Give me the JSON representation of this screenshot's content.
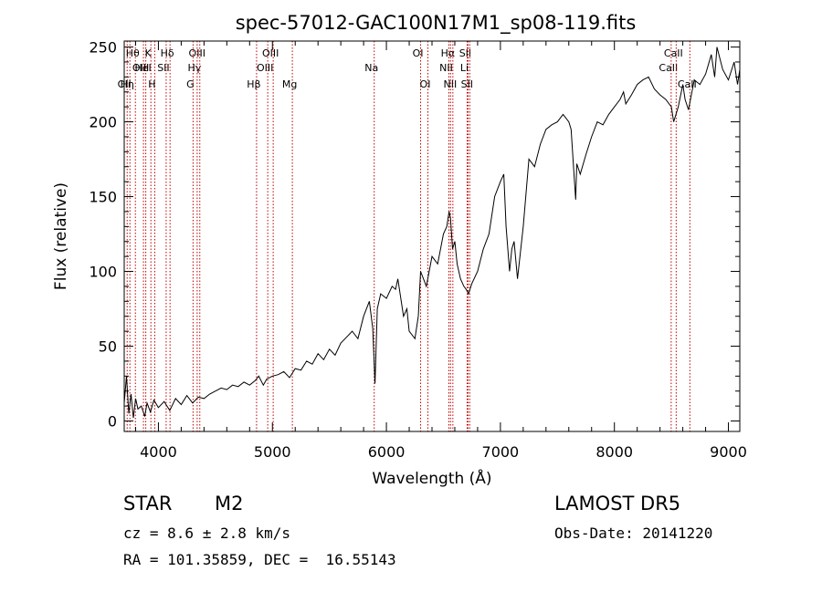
{
  "chart_data": {
    "type": "line",
    "title": "spec-57012-GAC100N17M1_sp08-119.fits",
    "xlabel": "Wavelength (Å)",
    "ylabel": "Flux (relative)",
    "xlim": [
      3700,
      9100
    ],
    "ylim": [
      -7,
      254
    ],
    "xticks": [
      4000,
      5000,
      6000,
      7000,
      8000,
      9000
    ],
    "yticks": [
      0,
      50,
      100,
      150,
      200,
      250
    ],
    "line_color": "#000000",
    "marker_color": "#c00000",
    "series": [
      {
        "x": [
          3700,
          3720,
          3740,
          3760,
          3780,
          3800,
          3820,
          3850,
          3880,
          3900,
          3930,
          3960,
          4000,
          4050,
          4100,
          4150,
          4200,
          4250,
          4300,
          4350,
          4400,
          4450,
          4500,
          4550,
          4600,
          4650,
          4700,
          4750,
          4800,
          4850,
          4880,
          4920,
          4950,
          5000,
          5050,
          5100,
          5150,
          5200,
          5250,
          5300,
          5350,
          5400,
          5450,
          5500,
          5550,
          5600,
          5650,
          5700,
          5750,
          5800,
          5850,
          5880,
          5900,
          5920,
          5950,
          6000,
          6050,
          6080,
          6100,
          6150,
          6180,
          6200,
          6250,
          6280,
          6300,
          6350,
          6400,
          6450,
          6500,
          6530,
          6550,
          6563,
          6580,
          6600,
          6620,
          6650,
          6680,
          6700,
          6720,
          6750,
          6800,
          6850,
          6900,
          6950,
          7000,
          7030,
          7050,
          7080,
          7100,
          7120,
          7150,
          7200,
          7250,
          7300,
          7350,
          7400,
          7450,
          7500,
          7550,
          7600,
          7620,
          7650,
          7660,
          7670,
          7700,
          7750,
          7800,
          7850,
          7900,
          7950,
          8000,
          8050,
          8080,
          8100,
          8150,
          8200,
          8250,
          8300,
          8350,
          8400,
          8450,
          8500,
          8520,
          8540,
          8560,
          8600,
          8620,
          8650,
          8680,
          8700,
          8750,
          8800,
          8850,
          8880,
          8900,
          8950,
          9000,
          9050,
          9080,
          9100
        ],
        "y": [
          12,
          30,
          5,
          18,
          2,
          15,
          8,
          10,
          3,
          12,
          6,
          14,
          9,
          13,
          7,
          15,
          11,
          17,
          12,
          16,
          15,
          18,
          20,
          22,
          21,
          24,
          23,
          26,
          24,
          27,
          30,
          24,
          28,
          30,
          31,
          33,
          29,
          35,
          34,
          40,
          38,
          45,
          41,
          48,
          44,
          52,
          56,
          60,
          55,
          70,
          80,
          62,
          25,
          75,
          85,
          82,
          90,
          88,
          95,
          70,
          75,
          60,
          55,
          70,
          100,
          90,
          110,
          105,
          125,
          130,
          140,
          135,
          115,
          120,
          105,
          95,
          90,
          88,
          85,
          92,
          100,
          115,
          125,
          150,
          160,
          165,
          130,
          100,
          115,
          120,
          95,
          130,
          175,
          170,
          185,
          195,
          198,
          200,
          205,
          200,
          195,
          160,
          148,
          172,
          165,
          178,
          190,
          200,
          198,
          205,
          210,
          215,
          220,
          212,
          218,
          225,
          228,
          230,
          222,
          218,
          215,
          210,
          200,
          205,
          210,
          225,
          215,
          208,
          220,
          228,
          225,
          232,
          245,
          230,
          250,
          235,
          228,
          240,
          225,
          235
        ]
      }
    ],
    "markers": [
      {
        "x": 3726,
        "label": "OII",
        "row": 3
      },
      {
        "x": 3750,
        "label": "Hη",
        "row": 3
      },
      {
        "x": 3798,
        "label": "Hθ",
        "row": 1
      },
      {
        "x": 3869,
        "label": "OIII",
        "row": 2
      },
      {
        "x": 3889,
        "label": "HeI",
        "row": 2
      },
      {
        "x": 3934,
        "label": "K",
        "row": 1
      },
      {
        "x": 3968,
        "label": "H",
        "row": 3
      },
      {
        "x": 4068,
        "label": "SII",
        "row": 2
      },
      {
        "x": 4102,
        "label": "Hδ",
        "row": 1
      },
      {
        "x": 4304,
        "label": "G",
        "row": 3
      },
      {
        "x": 4340,
        "label": "Hγ",
        "row": 2
      },
      {
        "x": 4363,
        "label": "OIII",
        "row": 1
      },
      {
        "x": 4861,
        "label": "Hβ",
        "row": 3
      },
      {
        "x": 4959,
        "label": "OIII",
        "row": 2
      },
      {
        "x": 5007,
        "label": "OIII",
        "row": 1
      },
      {
        "x": 5175,
        "label": "Mg",
        "row": 3
      },
      {
        "x": 5893,
        "label": "Na",
        "row": 2
      },
      {
        "x": 6300,
        "label": "OI",
        "row": 1
      },
      {
        "x": 6364,
        "label": "OI",
        "row": 3
      },
      {
        "x": 6548,
        "label": "NII",
        "row": 2
      },
      {
        "x": 6563,
        "label": "Hα",
        "row": 1
      },
      {
        "x": 6583,
        "label": "NII",
        "row": 3
      },
      {
        "x": 6708,
        "label": "Li",
        "row": 2
      },
      {
        "x": 6716,
        "label": "SII",
        "row": 1
      },
      {
        "x": 6731,
        "label": "SII",
        "row": 3
      },
      {
        "x": 8498,
        "label": "CaII",
        "row": 2
      },
      {
        "x": 8542,
        "label": "CaII",
        "row": 1
      },
      {
        "x": 8662,
        "label": "CaII",
        "row": 3
      }
    ]
  },
  "info": {
    "object_class": "STAR",
    "subclass": "M2",
    "velocity": "cz = 8.6 ± 2.8 km/s",
    "coordinates": "RA = 101.35859, DEC =  16.55143",
    "survey": "LAMOST DR5",
    "obs_date": "Obs-Date: 20141220"
  }
}
